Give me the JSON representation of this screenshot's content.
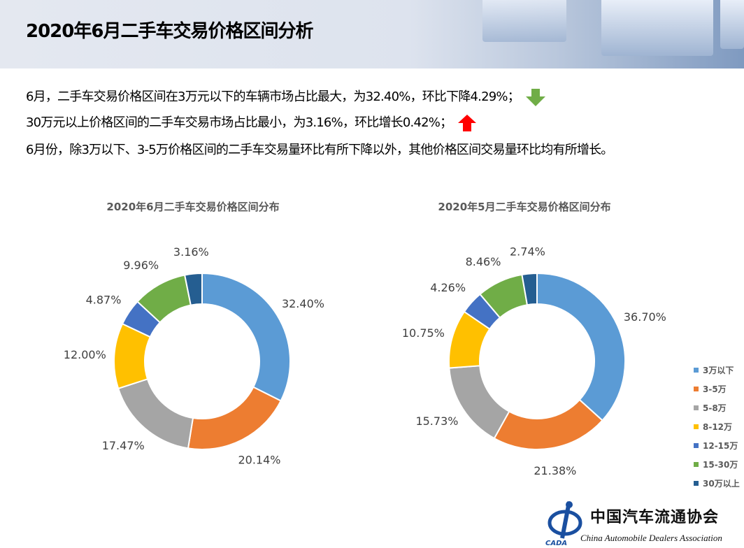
{
  "header": {
    "title": "2020年6月二手车交易价格区间分析"
  },
  "summary": {
    "line1": "6月，二手车交易价格区间在3万元以下的车辆市场占比最大，为32.40%，环比下降4.29%；",
    "line1_icon": "arrow-down-icon",
    "line2": "30万元以上价格区间的二手车交易市场占比最小，为3.16%，环比增长0.42%；",
    "line2_icon": "arrow-up-icon",
    "line3": "6月份，除3万以下、3-5万价格区间的二手车交易量环比有所下降以外，其他价格区间交易量环比均有所增长。"
  },
  "colors": {
    "down": "#70ad47",
    "up": "#ff0000"
  },
  "chart_data": [
    {
      "type": "pie",
      "donut": true,
      "title": "2020年6月二手车交易价格区间分布",
      "categories": [
        "3万以下",
        "3-5万",
        "5-8万",
        "8-12万",
        "12-15万",
        "15-30万",
        "30万以上"
      ],
      "values": [
        32.4,
        20.14,
        17.47,
        12.0,
        4.87,
        9.96,
        3.16
      ],
      "labels": [
        "32.40%",
        "20.14%",
        "17.47%",
        "12.00%",
        "4.87%",
        "9.96%",
        "3.16%"
      ],
      "colors": [
        "#5b9bd5",
        "#ed7d31",
        "#a5a5a5",
        "#ffc000",
        "#4472c4",
        "#70ad47",
        "#255e91"
      ]
    },
    {
      "type": "pie",
      "donut": true,
      "title": "2020年5月二手车交易价格区间分布",
      "categories": [
        "3万以下",
        "3-5万",
        "5-8万",
        "8-12万",
        "12-15万",
        "15-30万",
        "30万以上"
      ],
      "values": [
        36.7,
        21.38,
        15.73,
        10.75,
        4.26,
        8.46,
        2.74
      ],
      "labels": [
        "36.70%",
        "21.38%",
        "15.73%",
        "10.75%",
        "4.26%",
        "8.46%",
        "2.74%"
      ],
      "colors": [
        "#5b9bd5",
        "#ed7d31",
        "#a5a5a5",
        "#ffc000",
        "#4472c4",
        "#70ad47",
        "#255e91"
      ],
      "legend": "right"
    }
  ],
  "logo": {
    "cn": "中国汽车流通协会",
    "en": "China Automobile Dealers Association",
    "abbr": "CADA"
  }
}
